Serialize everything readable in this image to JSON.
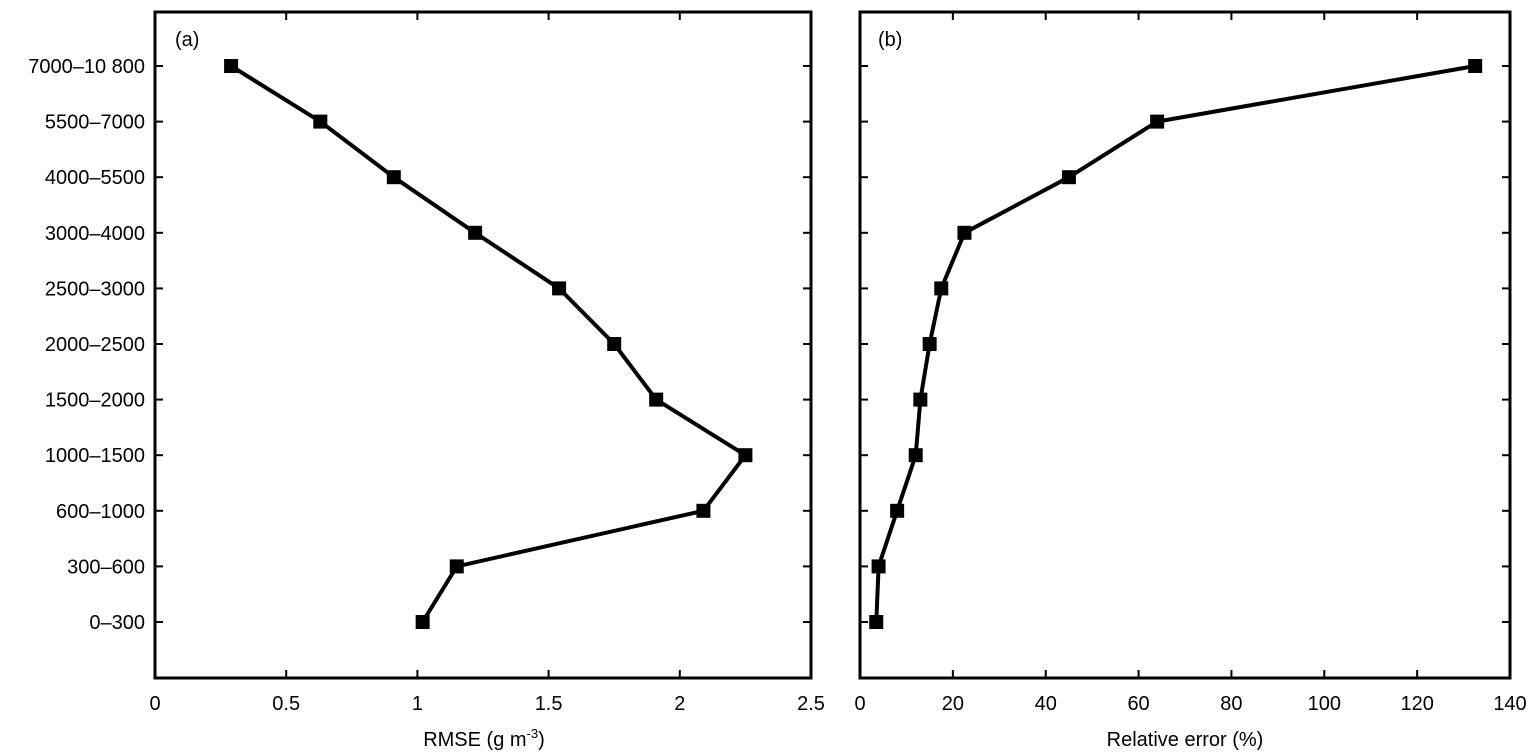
{
  "chart_data": [
    {
      "type": "line",
      "panel_label": "(a)",
      "title": "",
      "xlabel": "RMSE (g m",
      "xlabel_superscript": "-3",
      "xlabel_suffix": ")",
      "ylabel": "",
      "xlim": [
        0,
        2.5
      ],
      "xticks": [
        "0",
        "0.5",
        "1",
        "1.5",
        "2",
        "2.5"
      ],
      "categories": [
        "0–300",
        "300–600",
        "600–1000",
        "1000–1500",
        "1500–2000",
        "2000–2500",
        "2500–3000",
        "3000–4000",
        "4000–5500",
        "5500–7000",
        "7000–10 800"
      ],
      "series": [
        {
          "values": [
            1.02,
            1.15,
            2.09,
            2.25,
            1.91,
            1.75,
            1.54,
            1.22,
            0.91,
            0.63,
            0.29
          ]
        }
      ],
      "grid": false,
      "marker": "square"
    },
    {
      "type": "line",
      "panel_label": "(b)",
      "title": "",
      "xlabel": "Relative error (%)",
      "ylabel": "",
      "xlim": [
        0,
        140
      ],
      "xticks": [
        "0",
        "20",
        "40",
        "60",
        "80",
        "100",
        "120",
        "140"
      ],
      "categories": [
        "0–300",
        "300–600",
        "600–1000",
        "1000–1500",
        "1500–2000",
        "2000–2500",
        "2500–3000",
        "3000–4000",
        "4000–5500",
        "5500–7000",
        "7000–10 800"
      ],
      "series": [
        {
          "values": [
            3.5,
            4,
            8,
            12,
            13,
            15,
            17.5,
            22.5,
            45,
            64,
            132.5
          ]
        }
      ],
      "grid": false,
      "marker": "square"
    }
  ]
}
